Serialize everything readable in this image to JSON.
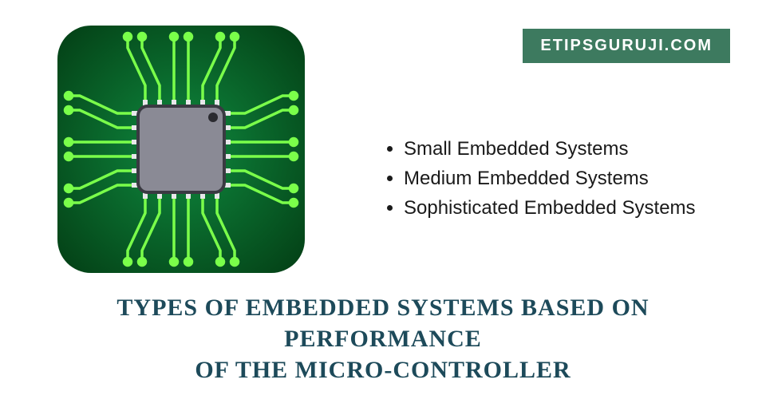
{
  "badge": {
    "text": "ETIPSGURUJI.COM",
    "bg_color": "#3d7a5f",
    "text_color": "#ffffff"
  },
  "chip": {
    "bg_gradient_inner": "#0f8a3f",
    "bg_gradient_outer": "#044418",
    "corner_radius": 42,
    "chip_body_color": "#8a8a95",
    "chip_border_color": "#3a3a42",
    "trace_color": "#7aff4a",
    "pin_color": "#e8e8ea",
    "dot_color": "#2a2a30"
  },
  "list_items": [
    "Small Embedded Systems",
    "Medium Embedded Systems",
    "Sophisticated Embedded Systems"
  ],
  "title": {
    "line1": "TYPES OF EMBEDDED SYSTEMS BASED ON PERFORMANCE",
    "line2": "OF THE MICRO-CONTROLLER",
    "color": "#1d4a5a"
  }
}
